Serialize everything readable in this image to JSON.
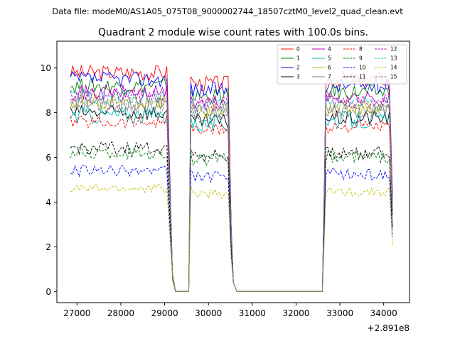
{
  "chart_data": {
    "type": "line",
    "suptitle": "Data file: modeM0/AS1A05_075T08_9000002744_18507cztM0_level2_quad_clean.evt",
    "title": "Quadrant 2 module wise count rates with 100.0s bins.",
    "xlabel": "",
    "ylabel": "",
    "offset_text": "+2.891e8",
    "xlim": [
      26540,
      34590
    ],
    "ylim": [
      -0.5,
      11.2
    ],
    "xticks": [
      27000,
      28000,
      29000,
      30000,
      31000,
      32000,
      33000,
      34000
    ],
    "xtick_labels": [
      "27000",
      "28000",
      "29000",
      "30000",
      "31000",
      "32000",
      "33000",
      "34000"
    ],
    "yticks": [
      0,
      2,
      4,
      6,
      8,
      10
    ],
    "ytick_labels": [
      "0",
      "2",
      "4",
      "6",
      "8",
      "10"
    ],
    "legend_position": "top-right",
    "segments": [
      {
        "x0": 26850,
        "x1": 29050,
        "ramp_down": [
          29130,
          29180,
          29250
        ]
      },
      {
        "x0": 29650,
        "x1": 30450,
        "ramp_up": [
          29550,
          29600
        ],
        "ramp_down": [
          30520,
          30570,
          30650
        ]
      },
      {
        "x0": 32680,
        "x1": 34150,
        "ramp_up": [
          32600,
          32650
        ],
        "ramp_down": [
          34200
        ]
      }
    ],
    "zero_gap_x": [
      29250,
      29350,
      29450,
      29550,
      30650,
      30750,
      31000,
      31500,
      32000,
      32500,
      32600
    ],
    "series": [
      {
        "name": "0",
        "color": "#ff0000",
        "dash": "solid",
        "level": 9.8,
        "amp": 0.35
      },
      {
        "name": "1",
        "color": "#008000",
        "dash": "solid",
        "level": 9.2,
        "amp": 0.35
      },
      {
        "name": "2",
        "color": "#0000ff",
        "dash": "solid",
        "level": 9.5,
        "amp": 0.35
      },
      {
        "name": "3",
        "color": "#000000",
        "dash": "solid",
        "level": 8.0,
        "amp": 0.35
      },
      {
        "name": "4",
        "color": "#bf00bf",
        "dash": "solid",
        "level": 8.9,
        "amp": 0.35
      },
      {
        "name": "5",
        "color": "#00bfbf",
        "dash": "solid",
        "level": 7.9,
        "amp": 0.4
      },
      {
        "name": "6",
        "color": "#bfbf00",
        "dash": "solid",
        "level": 8.5,
        "amp": 0.35
      },
      {
        "name": "7",
        "color": "#808080",
        "dash": "solid",
        "level": 8.4,
        "amp": 0.35
      },
      {
        "name": "8",
        "color": "#ff0000",
        "dash": "dashed",
        "level": 7.6,
        "amp": 0.3
      },
      {
        "name": "9",
        "color": "#008000",
        "dash": "dashed",
        "level": 6.2,
        "amp": 0.3
      },
      {
        "name": "10",
        "color": "#0000ff",
        "dash": "dashed",
        "level": 5.4,
        "amp": 0.25
      },
      {
        "name": "11",
        "color": "#000000",
        "dash": "dashed",
        "level": 6.4,
        "amp": 0.3
      },
      {
        "name": "12",
        "color": "#bf00bf",
        "dash": "dashed",
        "level": 8.8,
        "amp": 0.35
      },
      {
        "name": "13",
        "color": "#00bfbf",
        "dash": "dashed",
        "level": 8.7,
        "amp": 0.35
      },
      {
        "name": "14",
        "color": "#bfbf00",
        "dash": "dashed",
        "level": 4.6,
        "amp": 0.2
      },
      {
        "name": "15",
        "color": "#808080",
        "dash": "dashed",
        "level": 8.3,
        "amp": 0.35
      }
    ]
  }
}
